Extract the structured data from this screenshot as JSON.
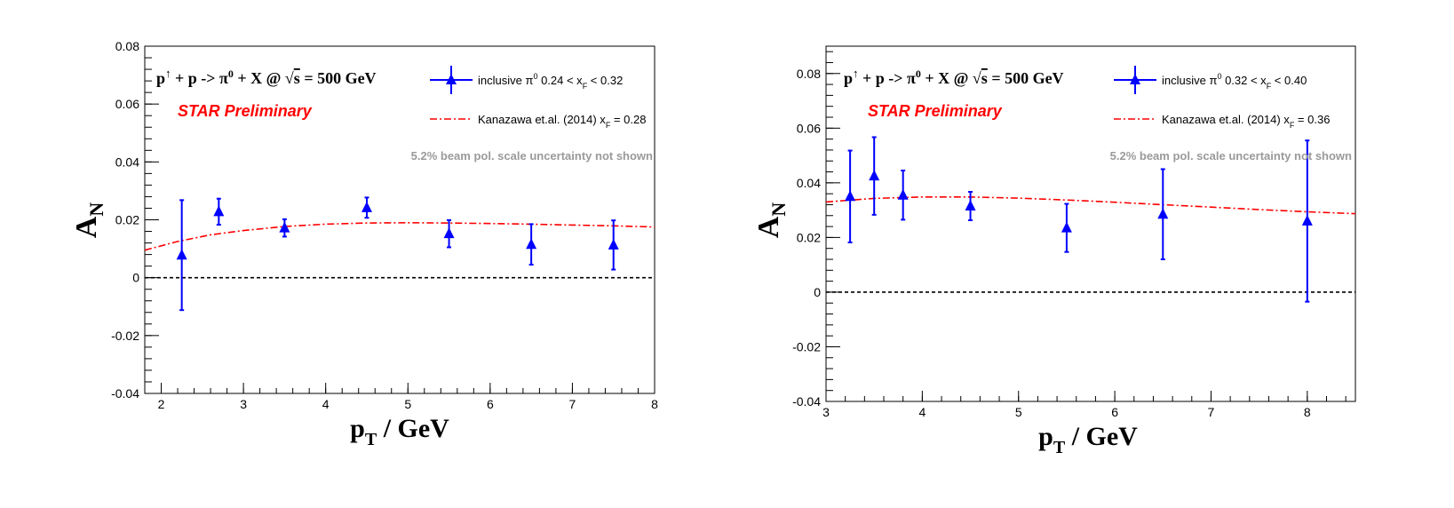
{
  "chart_data": [
    {
      "type": "scatter",
      "xlabel": {
        "main": "p",
        "sub": "T",
        "rest": " / GeV"
      },
      "ylabel": {
        "main": "A",
        "sub": "N"
      },
      "xlim": [
        1.8,
        8.0
      ],
      "ylim": [
        -0.04,
        0.08
      ],
      "xticks": [
        2,
        3,
        4,
        5,
        6,
        7,
        8
      ],
      "yticks": [
        -0.04,
        -0.02,
        0,
        0.02,
        0.04,
        0.06,
        0.08
      ],
      "ytick_labels": [
        "-0.04",
        "-0.02",
        "0",
        "0.02",
        "0.04",
        "0.06",
        "0.08"
      ],
      "formula": {
        "p1": "p",
        "up": "↑",
        "rest1": " + p ->  π",
        "zero": "0",
        "rest2": " + X @  ",
        "root": "√",
        "s": "s",
        "rest3": " = 500 GeV"
      },
      "preliminary": "STAR Preliminary",
      "note": "5.2% beam pol. scale uncertainty not shown",
      "legend": [
        {
          "kind": "marker",
          "parts": {
            "a": "inclusive π",
            "sup": "0",
            "b": " 0.24 < x",
            "sub": "F",
            "c": " < 0.32"
          }
        },
        {
          "kind": "line",
          "parts": {
            "a": "Kanazawa et.al. (2014) x",
            "sub": "F",
            "c": " = 0.28"
          }
        }
      ],
      "series": [
        {
          "marker": "triangle",
          "color": "#0000ff",
          "x": [
            2.25,
            2.7,
            3.5,
            4.5,
            5.5,
            6.5,
            7.5
          ],
          "y": [
            0.0078,
            0.0228,
            0.0172,
            0.0242,
            0.0152,
            0.0115,
            0.0113
          ],
          "err": [
            0.019,
            0.0045,
            0.003,
            0.0035,
            0.0047,
            0.007,
            0.0085
          ]
        }
      ],
      "theory": {
        "style": "dash-dot",
        "color": "#ff0000",
        "x": [
          1.8,
          2.2,
          2.6,
          3.0,
          3.5,
          4.0,
          4.5,
          5.0,
          5.5,
          6.0,
          6.5,
          7.0,
          7.5,
          8.0
        ],
        "y": [
          0.0095,
          0.0125,
          0.0148,
          0.0163,
          0.0177,
          0.0185,
          0.0189,
          0.019,
          0.0189,
          0.0187,
          0.0185,
          0.0182,
          0.0179,
          0.0175
        ]
      },
      "zero_line": true
    },
    {
      "type": "scatter",
      "xlabel": {
        "main": "p",
        "sub": "T",
        "rest": " / GeV"
      },
      "ylabel": {
        "main": "A",
        "sub": "N"
      },
      "xlim": [
        3.0,
        8.5
      ],
      "ylim": [
        -0.04,
        0.09
      ],
      "xticks": [
        3,
        4,
        5,
        6,
        7,
        8
      ],
      "yticks": [
        -0.04,
        -0.02,
        0,
        0.02,
        0.04,
        0.06,
        0.08
      ],
      "ytick_labels": [
        "-0.04",
        "-0.02",
        "0",
        "0.02",
        "0.04",
        "0.06",
        "0.08"
      ],
      "formula": {
        "p1": "p",
        "up": "↑",
        "rest1": " + p ->  π",
        "zero": "0",
        "rest2": " + X @  ",
        "root": "√",
        "s": "s",
        "rest3": " = 500 GeV"
      },
      "preliminary": "STAR Preliminary",
      "note": "5.2% beam pol. scale uncertainty not shown",
      "legend": [
        {
          "kind": "marker",
          "parts": {
            "a": "inclusive π",
            "sup": "0",
            "b": " 0.32 < x",
            "sub": "F",
            "c": " < 0.40"
          }
        },
        {
          "kind": "line",
          "parts": {
            "a": "Kanazawa et.al. (2014) x",
            "sub": "F",
            "c": " = 0.36"
          }
        }
      ],
      "series": [
        {
          "marker": "triangle",
          "color": "#0000ff",
          "x": [
            3.25,
            3.5,
            3.8,
            4.5,
            5.5,
            6.5,
            8.0
          ],
          "y": [
            0.035,
            0.0425,
            0.0355,
            0.0315,
            0.0235,
            0.0285,
            0.026
          ],
          "err": [
            0.0168,
            0.0142,
            0.009,
            0.0052,
            0.0088,
            0.0165,
            0.0295
          ]
        }
      ],
      "theory": {
        "style": "dash-dot",
        "color": "#ff0000",
        "x": [
          3.0,
          3.5,
          4.0,
          4.5,
          5.0,
          5.5,
          6.0,
          6.5,
          7.0,
          7.5,
          8.0,
          8.5
        ],
        "y": [
          0.033,
          0.0343,
          0.0348,
          0.0348,
          0.0344,
          0.0337,
          0.0329,
          0.032,
          0.0311,
          0.0302,
          0.0294,
          0.0287
        ]
      },
      "zero_line": true
    }
  ]
}
